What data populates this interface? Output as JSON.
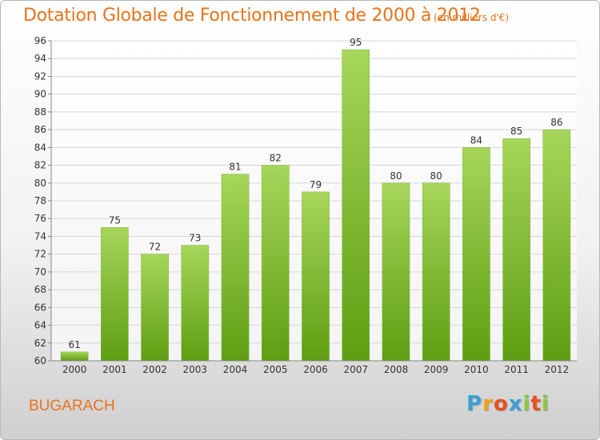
{
  "title": "Dotation Globale de Fonctionnement de 2000 à 2012",
  "unit_note": "(en milliers d'€)",
  "location": "BUGARACH",
  "logo": {
    "letters": [
      "P",
      "r",
      "o",
      "x",
      "i",
      "t",
      "i"
    ],
    "colors": [
      "#3aa0d8",
      "#f0a020",
      "#e8501a",
      "#3aa0d8",
      "#8cc63f",
      "#e8501a",
      "#8cc63f"
    ]
  },
  "colors": {
    "accent": "#e8731a",
    "bar_light": "#a6d65a",
    "bar_dark": "#5e9e12"
  },
  "chart_data": {
    "type": "bar",
    "categories": [
      "2000",
      "2001",
      "2002",
      "2003",
      "2004",
      "2005",
      "2006",
      "2007",
      "2008",
      "2009",
      "2010",
      "2011",
      "2012"
    ],
    "values": [
      61,
      75,
      72,
      73,
      81,
      82,
      79,
      95,
      80,
      80,
      84,
      85,
      86
    ],
    "value_labels": [
      "61",
      "75",
      "72",
      "73",
      "81",
      "82",
      "79",
      "95",
      "80",
      "80",
      "84",
      "85",
      "86"
    ],
    "title": "Dotation Globale de Fonctionnement de 2000 à 2012",
    "xlabel": "",
    "ylabel": "",
    "ylim": [
      60,
      96
    ],
    "yticks": [
      60,
      62,
      64,
      66,
      68,
      70,
      72,
      74,
      76,
      78,
      80,
      82,
      84,
      86,
      88,
      90,
      92,
      94,
      96
    ],
    "grid": true,
    "legend": "none"
  }
}
